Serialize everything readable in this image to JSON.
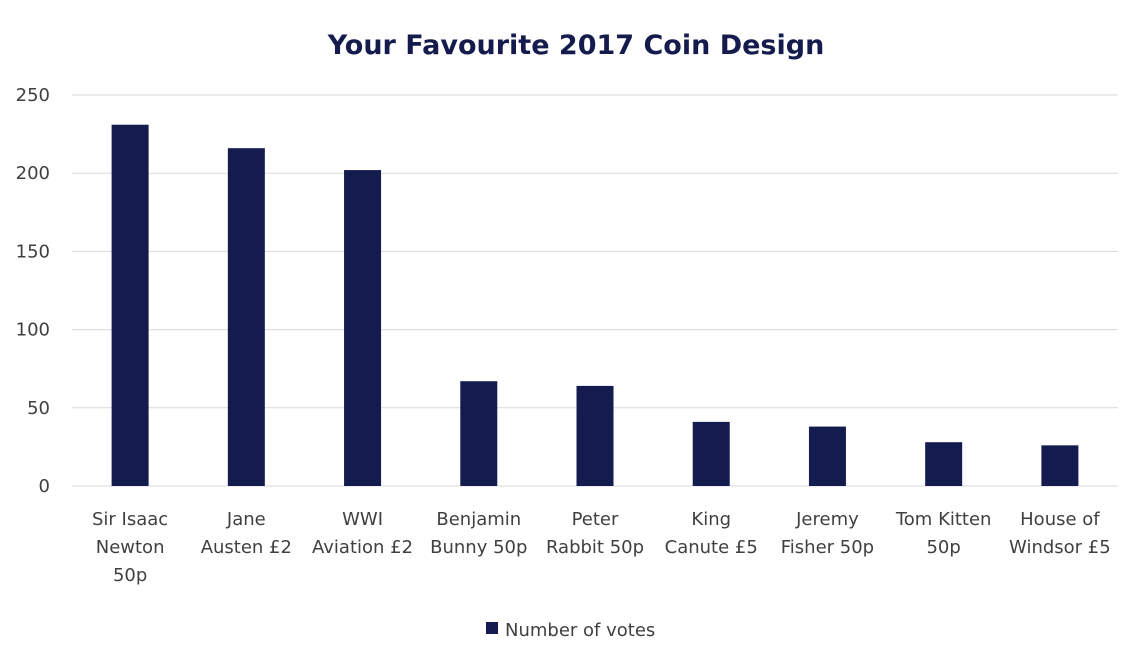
{
  "chart_data": {
    "type": "bar",
    "title": "Your Favourite 2017 Coin Design",
    "xlabel": "",
    "ylabel": "",
    "categories": [
      "Sir Isaac Newton 50p",
      "Jane Austen £2",
      "WWI Aviation £2",
      "Benjamin Bunny 50p",
      "Peter Rabbit 50p",
      "King Canute £5",
      "Jeremy Fisher 50p",
      "Tom Kitten 50p",
      "House of Windsor £5"
    ],
    "category_label_lines": [
      [
        "Sir Isaac",
        "Newton",
        "50p"
      ],
      [
        "Jane",
        "Austen £2"
      ],
      [
        "WWI",
        "Aviation £2"
      ],
      [
        "Benjamin",
        "Bunny 50p"
      ],
      [
        "Peter",
        "Rabbit 50p"
      ],
      [
        "King",
        "Canute £5"
      ],
      [
        "Jeremy",
        "Fisher 50p"
      ],
      [
        "Tom Kitten",
        "50p"
      ],
      [
        "House of",
        "Windsor £5"
      ]
    ],
    "series": [
      {
        "name": "Number of votes",
        "values": [
          231,
          216,
          202,
          67,
          64,
          41,
          38,
          28,
          26
        ],
        "color": "#141c4f"
      }
    ],
    "ylim": [
      0,
      250
    ],
    "yticks": [
      0,
      50,
      100,
      150,
      200,
      250
    ],
    "grid": true,
    "legend_position": "bottom-center",
    "gridline_color": "#d9d9d9"
  }
}
